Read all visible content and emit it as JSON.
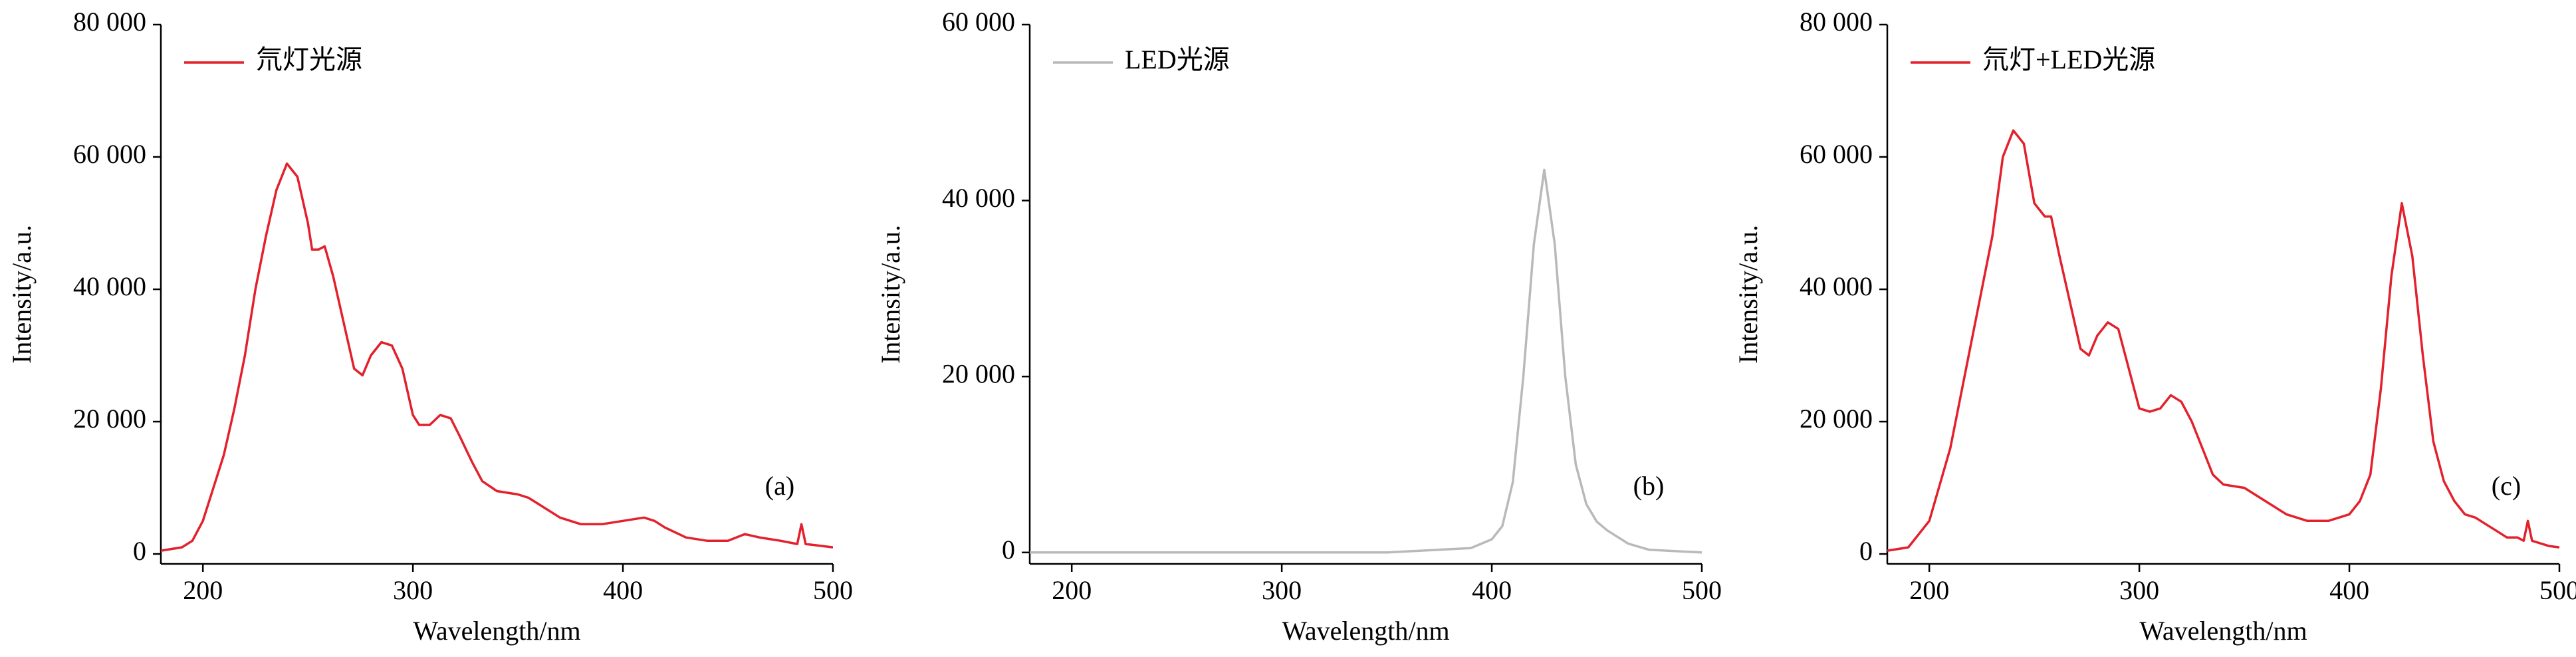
{
  "chart_data": [
    {
      "type": "line",
      "xlabel": "Wavelength/nm",
      "ylabel": "Intensity/a.u.",
      "annotation": "(a)",
      "xlim": [
        180,
        500
      ],
      "xticks": [
        200,
        300,
        400,
        500
      ],
      "ylim": [
        -1500,
        80000
      ],
      "yticks": [
        0,
        {
          "value": 20000,
          "label": "20 000"
        },
        {
          "value": 40000,
          "label": "40 000"
        },
        {
          "value": 60000,
          "label": "60 000"
        },
        {
          "value": 80000,
          "label": "80 000"
        }
      ],
      "legend": "upper left",
      "x": [
        180,
        190,
        195,
        200,
        205,
        210,
        215,
        220,
        225,
        230,
        235,
        240,
        245,
        250,
        252,
        255,
        258,
        262,
        267,
        272,
        276,
        280,
        285,
        290,
        295,
        300,
        303,
        308,
        313,
        318,
        322,
        328,
        333,
        340,
        350,
        355,
        360,
        370,
        380,
        390,
        400,
        410,
        415,
        420,
        430,
        440,
        450,
        458,
        465,
        475,
        483,
        485,
        487,
        495,
        500
      ],
      "series": [
        {
          "name": "氘灯光源",
          "color": "#e3202b",
          "values": [
            500,
            1000,
            2000,
            5000,
            10000,
            15000,
            22000,
            30000,
            40000,
            48000,
            55000,
            59000,
            57000,
            50000,
            46000,
            46000,
            46500,
            42000,
            35000,
            28000,
            27000,
            30000,
            32000,
            31500,
            28000,
            21000,
            19500,
            19500,
            21000,
            20500,
            18000,
            14000,
            11000,
            9500,
            9000,
            8500,
            7500,
            5500,
            4500,
            4500,
            5000,
            5500,
            5000,
            4000,
            2500,
            2000,
            2000,
            3000,
            2500,
            2000,
            1500,
            4500,
            1500,
            1200,
            1000
          ]
        }
      ]
    },
    {
      "type": "line",
      "xlabel": "Wavelength/nm",
      "ylabel": "Intensity/a.u.",
      "annotation": "(b)",
      "xlim": [
        180,
        500
      ],
      "xticks": [
        200,
        300,
        400,
        500
      ],
      "ylim": [
        -1300,
        60000
      ],
      "yticks": [
        0,
        {
          "value": 20000,
          "label": "20 000"
        },
        {
          "value": 40000,
          "label": "40 000"
        },
        {
          "value": 60000,
          "label": "60 000"
        }
      ],
      "legend": "upper left",
      "x": [
        180,
        250,
        300,
        350,
        390,
        400,
        405,
        410,
        415,
        420,
        425,
        430,
        435,
        440,
        445,
        450,
        455,
        465,
        475,
        500
      ],
      "series": [
        {
          "name": "LED光源",
          "color": "#b9b9b9",
          "values": [
            0,
            0,
            0,
            0,
            500,
            1500,
            3000,
            8000,
            20000,
            35000,
            43500,
            35000,
            20000,
            10000,
            5500,
            3500,
            2500,
            1000,
            300,
            0
          ]
        }
      ]
    },
    {
      "type": "line",
      "xlabel": "Wavelength/nm",
      "ylabel": "Intensity/a.u.",
      "annotation": "(c)",
      "xlim": [
        180,
        500
      ],
      "xticks": [
        200,
        300,
        400,
        500
      ],
      "ylim": [
        -1500,
        80000
      ],
      "yticks": [
        0,
        {
          "value": 20000,
          "label": "20 000"
        },
        {
          "value": 40000,
          "label": "40 000"
        },
        {
          "value": 60000,
          "label": "60 000"
        },
        {
          "value": 80000,
          "label": "80 000"
        }
      ],
      "legend": "upper left",
      "x": [
        180,
        190,
        200,
        210,
        220,
        230,
        235,
        240,
        245,
        250,
        255,
        258,
        262,
        267,
        272,
        276,
        280,
        285,
        290,
        295,
        300,
        305,
        310,
        315,
        320,
        325,
        330,
        335,
        340,
        350,
        360,
        370,
        380,
        390,
        400,
        405,
        410,
        415,
        420,
        425,
        430,
        435,
        440,
        445,
        450,
        455,
        460,
        465,
        470,
        475,
        480,
        483,
        485,
        487,
        495,
        500
      ],
      "series": [
        {
          "name": "氘灯+LED光源",
          "color": "#e3202b",
          "values": [
            500,
            1000,
            5000,
            16000,
            32000,
            48000,
            60000,
            64000,
            62000,
            53000,
            51000,
            51000,
            45000,
            38000,
            31000,
            30000,
            33000,
            35000,
            34000,
            28000,
            22000,
            21500,
            22000,
            24000,
            23000,
            20000,
            16000,
            12000,
            10500,
            10000,
            8000,
            6000,
            5000,
            5000,
            6000,
            8000,
            12000,
            25000,
            42000,
            53000,
            45000,
            30000,
            17000,
            11000,
            8000,
            6000,
            5500,
            4500,
            3500,
            2500,
            2500,
            2000,
            5000,
            2000,
            1200,
            1000
          ]
        }
      ]
    }
  ]
}
